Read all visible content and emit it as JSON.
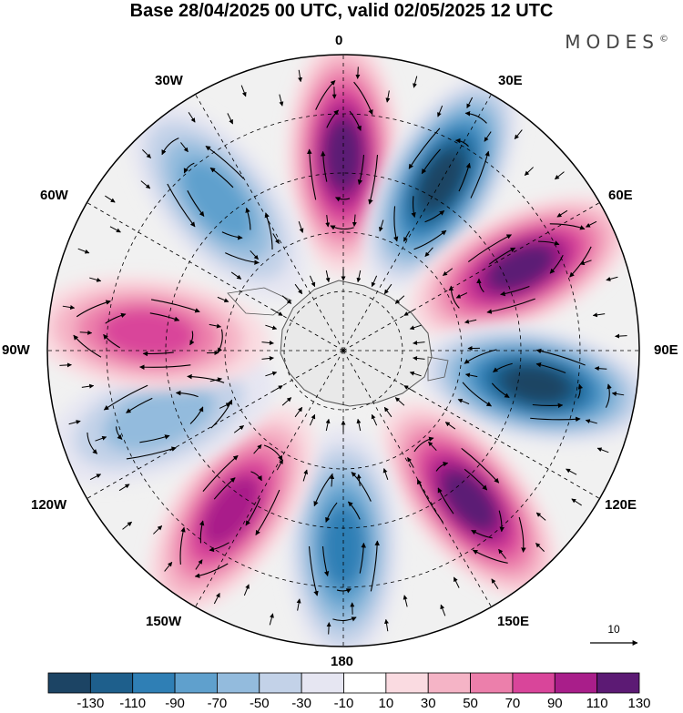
{
  "title": "Base 28/04/2025 00 UTC, valid 02/05/2025 12 UTC",
  "brand": {
    "name": "MODES",
    "mark": "©"
  },
  "map": {
    "projection": "polar stereographic (south pole)",
    "longitude_labels": {
      "lon_0": "0",
      "lon_30e": "30E",
      "lon_60e": "60E",
      "lon_90e": "90E",
      "lon_120e": "120E",
      "lon_150e": "150E",
      "lon_180": "180",
      "lon_150w": "150W",
      "lon_120w": "120W",
      "lon_90w": "90W",
      "lon_60w": "60W",
      "lon_30w": "30W"
    },
    "anomaly_centers": [
      {
        "lon": 0,
        "sign": "positive",
        "peak": 120
      },
      {
        "lon": 30,
        "sign": "negative",
        "peak": -130
      },
      {
        "lon": 65,
        "sign": "positive",
        "peak": 120
      },
      {
        "lon": 100,
        "sign": "negative",
        "peak": -130
      },
      {
        "lon": 140,
        "sign": "positive",
        "peak": 120
      },
      {
        "lon": 180,
        "sign": "negative",
        "peak": -90
      },
      {
        "lon": -145,
        "sign": "positive",
        "peak": 100
      },
      {
        "lon": -110,
        "sign": "negative",
        "peak": -50
      },
      {
        "lon": -85,
        "sign": "positive",
        "peak": 80
      },
      {
        "lon": -40,
        "sign": "negative",
        "peak": -70
      }
    ],
    "vector_reference": {
      "value": "10"
    }
  },
  "colorbar": {
    "labels": [
      "-130",
      "-110",
      "-90",
      "-70",
      "-50",
      "-30",
      "-10",
      "10",
      "30",
      "50",
      "70",
      "90",
      "110",
      "130"
    ],
    "colors": [
      "#1c4464",
      "#1e5f8c",
      "#2f7fb5",
      "#5fa0cd",
      "#93bbdd",
      "#c3d2e8",
      "#e6e6f2",
      "#ffffff",
      "#fadbe1",
      "#f5b4c6",
      "#ec7fab",
      "#d9459a",
      "#a91e8a",
      "#5c1a74"
    ]
  }
}
